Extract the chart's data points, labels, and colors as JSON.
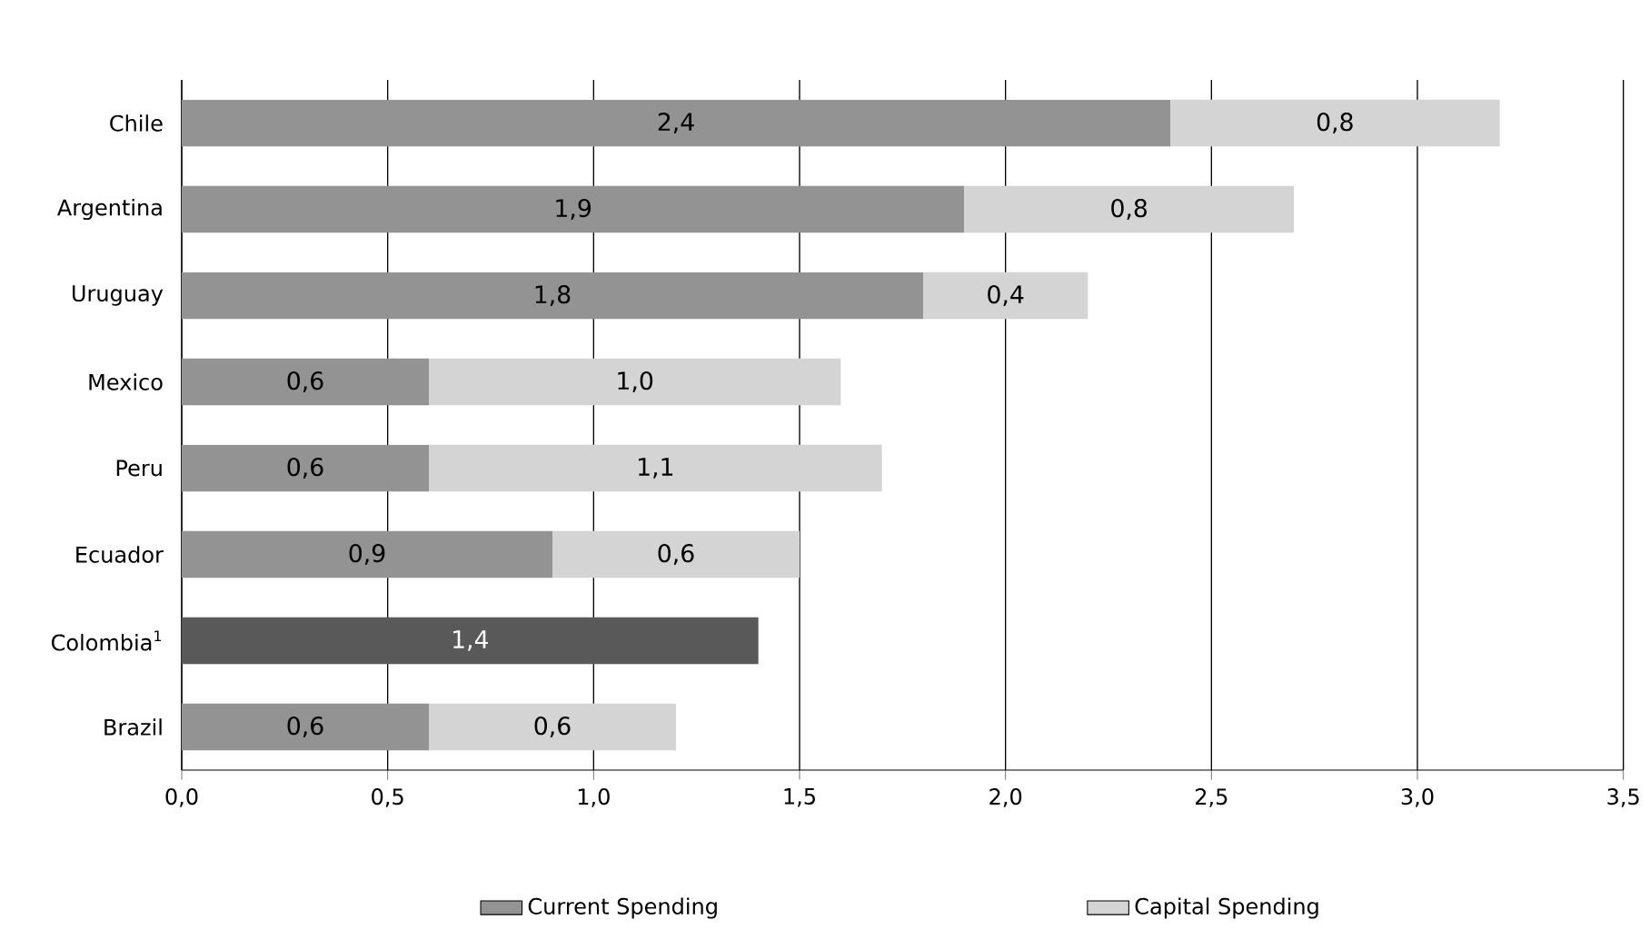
{
  "chart_data": {
    "type": "bar",
    "orientation": "horizontal",
    "stacked": true,
    "categories": [
      "Chile",
      "Argentina",
      "Uruguay",
      "Mexico",
      "Peru",
      "Ecuador",
      "Colombia$^{1}$",
      "Brazil"
    ],
    "series": [
      {
        "name": "Current Spending",
        "color": "#939393",
        "colors": [
          "#939393",
          "#939393",
          "#939393",
          "#939393",
          "#939393",
          "#939393",
          "#595959",
          "#939393"
        ],
        "values": [
          2.4,
          1.9,
          1.8,
          0.6,
          0.6,
          0.9,
          1.4,
          0.6
        ],
        "value_labels": [
          "2,4",
          "1,9",
          "1,8",
          "0,6",
          "0,6",
          "0,9",
          "1,4",
          "0,6"
        ]
      },
      {
        "name": "Capital Spending",
        "color": "#d4d4d4",
        "values": [
          0.8,
          0.8,
          0.4,
          1.0,
          1.1,
          0.6,
          null,
          0.6
        ],
        "value_labels": [
          "0,8",
          "0,8",
          "0,4",
          "1,0",
          "1,1",
          "0,6",
          null,
          "0,6"
        ]
      }
    ],
    "xlim": [
      0,
      3.5
    ],
    "xticks": [
      {
        "value": 0,
        "label": "0,0"
      },
      {
        "value": 0.5,
        "label": "0,5"
      },
      {
        "value": 1,
        "label": "1,0"
      },
      {
        "value": 1.5,
        "label": "1,5"
      },
      {
        "value": 2,
        "label": "2,0"
      },
      {
        "value": 2.5,
        "label": "2,5"
      },
      {
        "value": 3,
        "label": "3,0"
      },
      {
        "value": 3.5,
        "label": "3,5"
      }
    ],
    "grid": "x",
    "legend": "bottom"
  }
}
